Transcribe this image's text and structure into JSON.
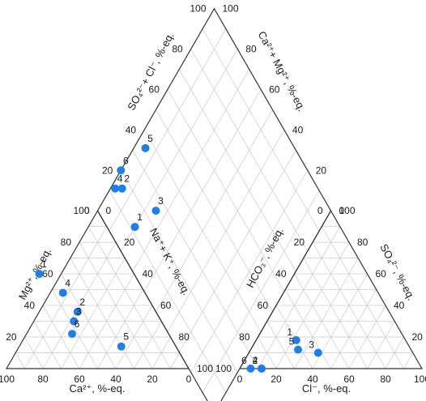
{
  "chart_data": {
    "type": "scatter",
    "subtype": "piper-diagram",
    "grid": true,
    "grid_step": 10,
    "axis_range": [
      0,
      100
    ],
    "ticks": [
      "0",
      "20",
      "40",
      "60",
      "80",
      "100"
    ],
    "colors": {
      "points": "#1f7fe6",
      "grid": "#c8c8c8",
      "frame": "#333333",
      "text": "#1a1a1a"
    },
    "axis_labels": {
      "cation_x": "Ca²⁺, %-eq.",
      "cation_left": "Mg²⁺, %-eq.",
      "cation_right": "Na⁺+ K⁺, %-eq.",
      "anion_x": "Cl⁻, %-eq.",
      "anion_left": "HCO₃⁻, %-eq.",
      "anion_right": "SO₄²⁻, %-eq.",
      "diamond_left": "SO₄²⁻+ Cl⁻, %-eq.",
      "diamond_right": "Ca²⁺+ Mg²⁺, %-eq."
    },
    "cations": [
      {
        "label": "1",
        "ca": 52,
        "mg": 60,
        "na_k": -12
      },
      {
        "label": "2",
        "ca": 43,
        "mg": 36,
        "na_k": 21
      },
      {
        "label": "3",
        "ca": 48,
        "mg": 30,
        "na_k": 22
      },
      {
        "label": "4",
        "ca": 45,
        "mg": 48,
        "na_k": 7
      },
      {
        "label": "5",
        "ca": 30,
        "mg": 14,
        "na_k": 56
      },
      {
        "label": "6",
        "ca": 53,
        "mg": 22,
        "na_k": 25
      }
    ],
    "anions": [
      {
        "label": "1",
        "cl": 22,
        "so4": 18,
        "hco3": 60
      },
      {
        "label": "2",
        "cl": 12,
        "so4": 0,
        "hco3": 88
      },
      {
        "label": "3",
        "cl": 38,
        "so4": 10,
        "hco3": 52
      },
      {
        "label": "4",
        "cl": 12,
        "so4": 0,
        "hco3": 88
      },
      {
        "label": "5",
        "cl": 26,
        "so4": 12,
        "hco3": 62
      },
      {
        "label": "6",
        "cl": 6,
        "so4": 0,
        "hco3": 94
      }
    ],
    "diamond": [
      {
        "label": "1",
        "so4_cl": 12,
        "ca_mg": 20
      },
      {
        "label": "2",
        "so4_cl": 16,
        "ca_mg": 5
      },
      {
        "label": "3",
        "so4_cl": 25,
        "ca_mg": 25
      },
      {
        "label": "4",
        "so4_cl": 13,
        "ca_mg": 2
      },
      {
        "label": "5",
        "so4_cl": 36,
        "ca_mg": 5
      },
      {
        "label": "6",
        "so4_cl": 20,
        "ca_mg": 0
      }
    ]
  }
}
